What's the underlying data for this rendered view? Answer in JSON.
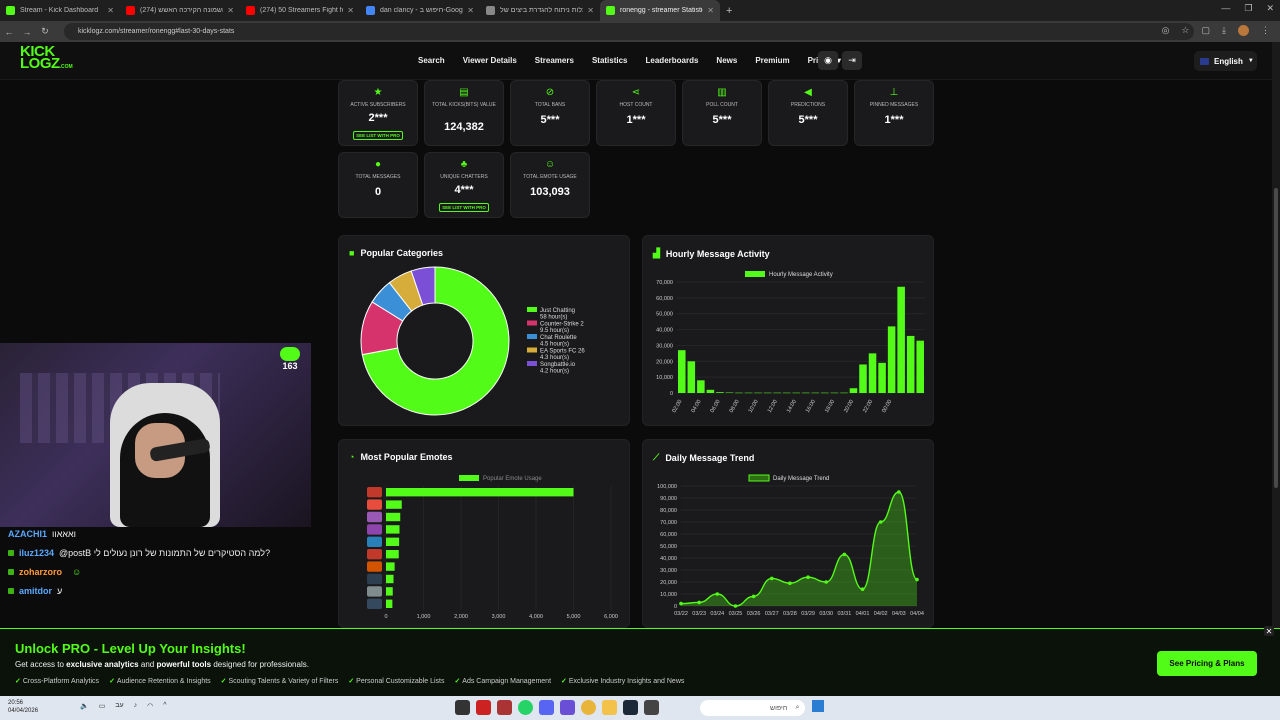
{
  "browser": {
    "tabs": [
      {
        "title": "Stream - Kick Dashboard",
        "color": "#53fc18"
      },
      {
        "title": "מהשמונה הקירכה האשש (274)",
        "color": "#ff0000"
      },
      {
        "title": "(274) 50 Streamers Fight for $1",
        "color": "#ff0000"
      },
      {
        "title": "dan clancy - חיפוש ב-Google",
        "color": "#4285f4"
      },
      {
        "title": "עלות ניתוח להגדרת ביצים של",
        "color": "#888888"
      },
      {
        "title": "ronengg - streamer Statistics",
        "color": "#53fc18"
      }
    ],
    "url": "kicklogz.com/streamer/ronengg#last-30-days-stats"
  },
  "site": {
    "logo_top": "KICK",
    "logo_bottom": "LOGZ",
    "logo_suffix": ".COM",
    "menu": [
      "Search",
      "Viewer Details",
      "Streamers",
      "Statistics",
      "Leaderboards",
      "News",
      "Premium",
      "Pricing"
    ],
    "language": "English"
  },
  "stats": [
    {
      "label": "Active Subscribers",
      "value": "2***",
      "pro": "SEE LIST WITH PRO",
      "icon": "star-icon"
    },
    {
      "label": "Total Kicks(Bits) Value",
      "value": "124,382",
      "pro": "",
      "icon": "coins-icon"
    },
    {
      "label": "Total Bans",
      "value": "5***",
      "pro": "",
      "icon": "ban-icon"
    },
    {
      "label": "Host Count",
      "value": "1***",
      "pro": "",
      "icon": "share-icon"
    },
    {
      "label": "Poll Count",
      "value": "5***",
      "pro": "",
      "icon": "poll-icon"
    },
    {
      "label": "Predictions",
      "value": "5***",
      "pro": "",
      "icon": "megaphone-icon"
    },
    {
      "label": "Pinned Messages",
      "value": "1***",
      "pro": "",
      "icon": "pin-icon"
    },
    {
      "label": "Total Messages",
      "value": "0",
      "pro": "",
      "icon": "message-icon"
    },
    {
      "label": "Unique Chatters",
      "value": "4***",
      "pro": "SEE LIST WITH PRO",
      "icon": "users-icon"
    },
    {
      "label": "Total Emote Usage",
      "value": "103,093",
      "pro": "",
      "icon": "smile-icon"
    }
  ],
  "panels": {
    "categories_title": "Popular Categories",
    "hourly_title": "Hourly Message Activity",
    "emotes_title": "Most Popular Emotes",
    "daily_title": "Daily Message Trend"
  },
  "chart_data": [
    {
      "type": "pie",
      "title": "Popular Categories",
      "categories": [
        "Just Chatting",
        "Counter-Strike 2",
        "Chat Roulette",
        "EA Sports FC 26",
        "Songbattle.io"
      ],
      "values": [
        58,
        9.5,
        4.5,
        4.3,
        4.2
      ],
      "value_labels": [
        "58 hour(s)",
        "9.5 hour(s)",
        "4.5 hour(s)",
        "4.3 hour(s)",
        "4.2 hour(s)"
      ],
      "colors": [
        "#53fc18",
        "#d6336c",
        "#3a8fd6",
        "#d6ad3a",
        "#7b4fd6"
      ],
      "legend": "right"
    },
    {
      "type": "bar",
      "title": "Hourly Message Activity",
      "series": [
        {
          "name": "Hourly Message Activity",
          "values": [
            27000,
            20000,
            8000,
            2000,
            500,
            300,
            200,
            200,
            200,
            200,
            200,
            200,
            200,
            200,
            200,
            200,
            200,
            200,
            3000,
            18000,
            25000,
            19000,
            42000,
            67000,
            36000,
            33000
          ]
        }
      ],
      "categories": [
        "02:00",
        "03:00",
        "04:00",
        "05:00",
        "06:00",
        "07:00",
        "08:00",
        "09:00",
        "10:00",
        "11:00",
        "12:00",
        "13:00",
        "14:00",
        "15:00",
        "16:00",
        "17:00",
        "18:00",
        "19:00",
        "20:00",
        "21:00",
        "22:00",
        "23:00",
        "00:00",
        "01:00",
        "02:00",
        "03:00"
      ],
      "tick_labels": [
        "02:00",
        "04:00",
        "06:00",
        "08:00",
        "10:00",
        "12:00",
        "14:00",
        "16:00",
        "18:00",
        "20:00",
        "22:00",
        "00:00"
      ],
      "yticks": [
        "70,000",
        "60,000",
        "50,000",
        "40,000",
        "30,000",
        "20,000",
        "10,000",
        "0"
      ],
      "ylim": [
        0,
        70000
      ],
      "grid": true
    },
    {
      "type": "bar",
      "orientation": "horizontal",
      "title": "Most Popular Emotes",
      "series": [
        {
          "name": "Popular Emote Usage",
          "values": [
            5000,
            420,
            380,
            360,
            350,
            340,
            230,
            200,
            180,
            170
          ]
        }
      ],
      "xticks": [
        "0",
        "1,000",
        "2,000",
        "3,000",
        "4,000",
        "5,000",
        "6,000"
      ],
      "xlim": [
        0,
        6000
      ],
      "grid": true
    },
    {
      "type": "area",
      "title": "Daily Message Trend",
      "categories": [
        "03/22",
        "03/23",
        "03/24",
        "03/25",
        "03/26",
        "03/27",
        "03/28",
        "03/29",
        "03/30",
        "03/31",
        "04/01",
        "04/02",
        "04/03",
        "04/04"
      ],
      "series": [
        {
          "name": "Daily Message Trend",
          "values": [
            2000,
            3000,
            10000,
            0,
            8000,
            23000,
            19000,
            24000,
            20000,
            43000,
            14000,
            70000,
            95000,
            22000
          ]
        }
      ],
      "yticks": [
        "100,000",
        "90,000",
        "80,000",
        "70,000",
        "60,000",
        "50,000",
        "40,000",
        "30,000",
        "20,000",
        "10,000",
        "0"
      ],
      "ylim": [
        0,
        100000
      ],
      "grid": true
    }
  ],
  "chat": [
    {
      "user": "AZACHI1",
      "msg": "ואאאוו",
      "color": "#5aa8ff"
    },
    {
      "user": "iluz1234",
      "msg": "@postB למה הסטיקרים של התמונות של רונן נעולים לי?",
      "color": "#5aa8ff"
    },
    {
      "user": "zoharzoro",
      "msg": "",
      "color": "#ff9a3a"
    },
    {
      "user": "amitdor",
      "msg": "ע",
      "color": "#5aa8ff"
    }
  ],
  "overlay_badge": "163",
  "promo": {
    "heading": "Unlock PRO - Level Up Your Insights!",
    "sub_pre": "Get access to ",
    "sub_b1": "exclusive analytics",
    "sub_mid": " and ",
    "sub_b2": "powerful tools",
    "sub_post": " designed for professionals.",
    "features": [
      "Cross-Platform Analytics",
      "Audience Retention & Insights",
      "Scouting Talents & Variety of Filters",
      "Personal Customizable Lists",
      "Ads Campaign Management",
      "Exclusive Industry Insights and News"
    ],
    "cta": "See Pricing & Plans"
  },
  "taskbar": {
    "time": "20:56",
    "date": "04/04/2026",
    "lang": "עב",
    "search": "חיפוש"
  }
}
